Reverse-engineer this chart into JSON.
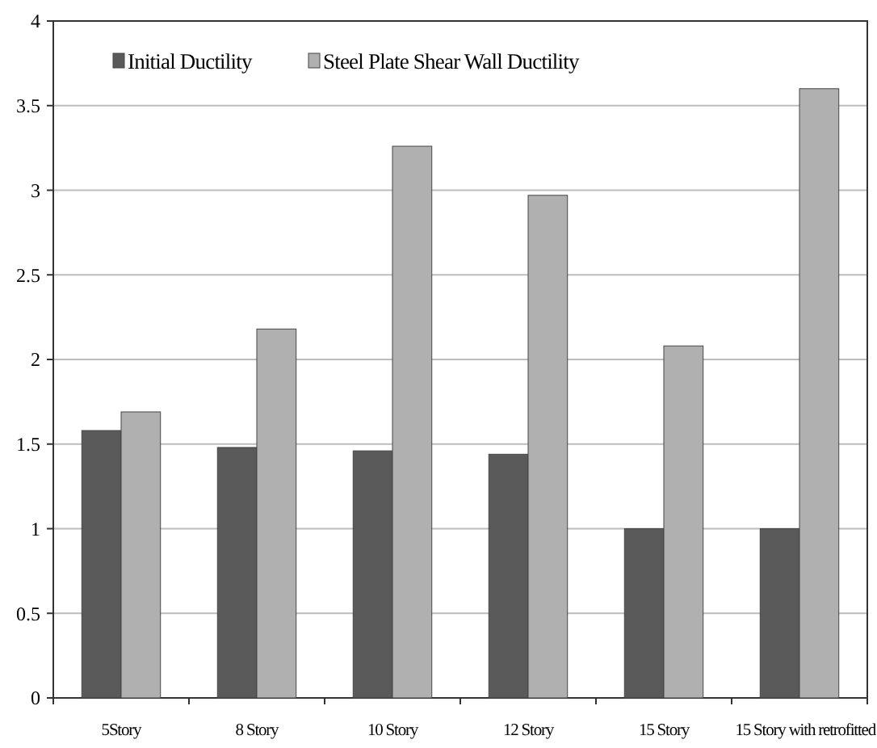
{
  "chart_data": {
    "type": "bar",
    "categories": [
      "5Story",
      "8 Story",
      "10 Story",
      "12 Story",
      "15 Story",
      "15 Story with retrofitted"
    ],
    "series": [
      {
        "name": "Initial Ductility",
        "color": "#5a5a5a",
        "values": [
          1.58,
          1.48,
          1.46,
          1.44,
          1.0,
          1.0
        ]
      },
      {
        "name": "Steel Plate Shear Wall Ductility",
        "color": "#b0b0b0",
        "values": [
          1.69,
          2.18,
          3.26,
          2.97,
          2.08,
          3.6
        ]
      }
    ],
    "ylim": [
      0,
      4
    ],
    "yticks": [
      0,
      0.5,
      1,
      1.5,
      2,
      2.5,
      3,
      3.5,
      4
    ],
    "grid": "y",
    "legend": "top left"
  }
}
